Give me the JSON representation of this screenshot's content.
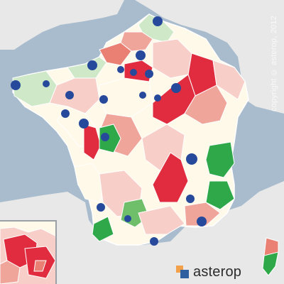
{
  "map": {
    "copyright": "copyright © asterop, 2012",
    "logo_text": "asterop"
  },
  "colors": {
    "sea": "#a9bccd",
    "land_outside": "#e8e8e8",
    "france_base": "#fff9ea",
    "light_green": "#cfe8c8",
    "green": "#6fbe6a",
    "strong_green": "#2fa84a",
    "light_pink": "#f8cfc8",
    "pink": "#f0a59b",
    "salmon": "#e98073",
    "red": "#e02c3e",
    "marker": "#26499b"
  },
  "legend_semantics": {
    "markers": "city",
    "region_fill": "value intensity (green=low, red=high)"
  }
}
